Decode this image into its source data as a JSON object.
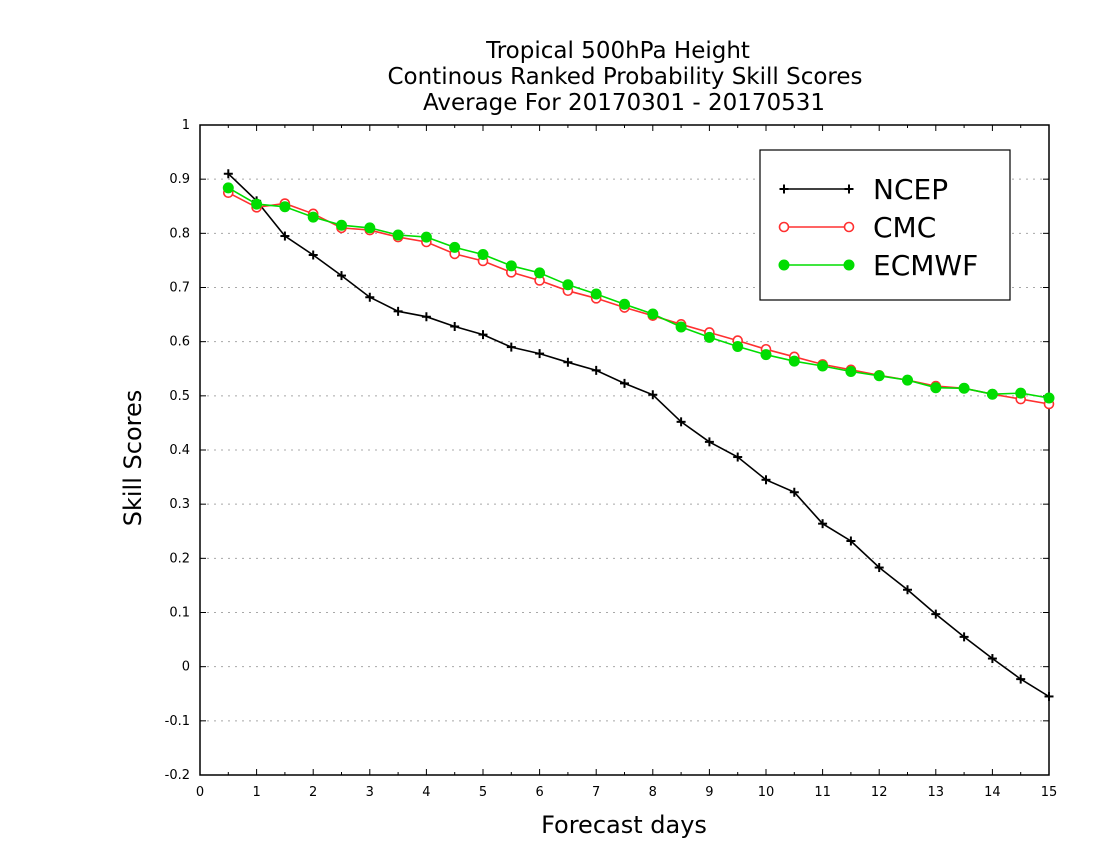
{
  "chart_data": {
    "type": "line",
    "title_lines": [
      "Tropical 500hPa Height",
      "Continous Ranked Probability Skill Scores",
      "Average For 20170301 - 20170531"
    ],
    "xlabel": "Forecast days",
    "ylabel": "Skill Scores",
    "xlim": [
      0,
      15
    ],
    "ylim": [
      -0.2,
      1
    ],
    "xticks": [
      0,
      1,
      2,
      3,
      4,
      5,
      6,
      7,
      8,
      9,
      10,
      11,
      12,
      13,
      14,
      15
    ],
    "xtick_labels": [
      "0",
      "1",
      "2",
      "3",
      "4",
      "5",
      "6",
      "7",
      "8",
      "9",
      "10",
      "11",
      "12",
      "13",
      "14",
      "15"
    ],
    "yticks": [
      -0.2,
      -0.1,
      0,
      0.1,
      0.2,
      0.3,
      0.4,
      0.5,
      0.6,
      0.7,
      0.8,
      0.9,
      1
    ],
    "ytick_labels": [
      "-0.2",
      "-0.1",
      "0",
      "0.1",
      "0.2",
      "0.3",
      "0.4",
      "0.5",
      "0.6",
      "0.7",
      "0.8",
      "0.9",
      "1"
    ],
    "grid": "horizontal dotted",
    "legend_position": "top-right",
    "x": [
      0.5,
      1,
      1.5,
      2,
      2.5,
      3,
      3.5,
      4,
      4.5,
      5,
      5.5,
      6,
      6.5,
      7,
      7.5,
      8,
      8.5,
      9,
      9.5,
      10,
      10.5,
      11,
      11.5,
      12,
      12.5,
      13,
      13.5,
      14,
      14.5,
      15
    ],
    "series": [
      {
        "name": "NCEP",
        "color": "#000000",
        "marker": "plus",
        "values": [
          0.91,
          0.86,
          0.795,
          0.76,
          0.722,
          0.682,
          0.656,
          0.646,
          0.628,
          0.613,
          0.59,
          0.578,
          0.562,
          0.547,
          0.523,
          0.502,
          0.452,
          0.415,
          0.387,
          0.345,
          0.322,
          0.264,
          0.232,
          0.183,
          0.142,
          0.097,
          0.055,
          0.015,
          -0.023,
          -0.055
        ]
      },
      {
        "name": "CMC",
        "color": "#ff3030",
        "marker": "open-circle",
        "values": [
          0.875,
          0.848,
          0.855,
          0.836,
          0.81,
          0.806,
          0.793,
          0.784,
          0.762,
          0.749,
          0.728,
          0.713,
          0.694,
          0.68,
          0.663,
          0.648,
          0.632,
          0.617,
          0.602,
          0.586,
          0.572,
          0.558,
          0.548,
          0.538,
          0.529,
          0.518,
          0.514,
          0.503,
          0.494,
          0.485
        ]
      },
      {
        "name": "ECMWF",
        "color": "#00dd00",
        "marker": "filled-circle",
        "values": [
          0.884,
          0.854,
          0.849,
          0.83,
          0.815,
          0.81,
          0.797,
          0.793,
          0.774,
          0.761,
          0.74,
          0.727,
          0.705,
          0.688,
          0.669,
          0.651,
          0.627,
          0.608,
          0.591,
          0.576,
          0.564,
          0.555,
          0.545,
          0.537,
          0.529,
          0.515,
          0.514,
          0.503,
          0.505,
          0.496
        ]
      }
    ]
  }
}
